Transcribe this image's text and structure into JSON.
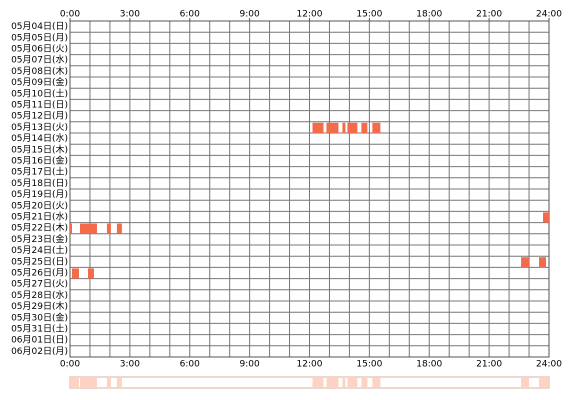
{
  "chart_data": {
    "type": "timeline",
    "categories": [
      "05月04日(日)",
      "05月05日(月)",
      "05月06日(火)",
      "05月07日(水)",
      "05月08日(木)",
      "05月09日(金)",
      "05月10日(土)",
      "05月11日(日)",
      "05月12日(月)",
      "05月13日(火)",
      "05月14日(水)",
      "05月15日(木)",
      "05月16日(金)",
      "05月17日(土)",
      "05月18日(日)",
      "05月19日(月)",
      "05月20日(火)",
      "05月21日(水)",
      "05月22日(木)",
      "05月23日(金)",
      "05月24日(土)",
      "05月25日(日)",
      "05月26日(月)",
      "05月27日(火)",
      "05月28日(水)",
      "05月29日(木)",
      "05月30日(金)",
      "05月31日(土)",
      "06月01日(日)",
      "06月02日(月)"
    ],
    "events": [
      [],
      [],
      [],
      [],
      [],
      [],
      [],
      [],
      [],
      [
        [
          12.15,
          12.7
        ],
        [
          12.85,
          13.45
        ],
        [
          13.65,
          13.8
        ],
        [
          13.9,
          14.4
        ],
        [
          14.6,
          14.9
        ],
        [
          15.15,
          15.55
        ]
      ],
      [],
      [],
      [],
      [],
      [],
      [],
      [],
      [
        [
          23.7,
          24
        ]
      ],
      [
        [
          0,
          0.1
        ],
        [
          0.5,
          1.35
        ],
        [
          1.85,
          2.05
        ],
        [
          2.35,
          2.6
        ]
      ],
      [],
      [],
      [
        [
          22.6,
          23.0
        ],
        [
          23.5,
          23.85
        ]
      ],
      [
        [
          0.1,
          0.45
        ],
        [
          0.9,
          1.2
        ]
      ],
      [],
      [],
      [],
      [],
      [],
      [],
      []
    ],
    "color": "#f36b4b",
    "summary_color": "#fdd3c3",
    "xlim": [
      0,
      24
    ],
    "xticks": [
      {
        "value": 0,
        "label": "0:00"
      },
      {
        "value": 3,
        "label": "3:00"
      },
      {
        "value": 6,
        "label": "6:00"
      },
      {
        "value": 9,
        "label": "9:00"
      },
      {
        "value": 12,
        "label": "12:00"
      },
      {
        "value": 15,
        "label": "15:00"
      },
      {
        "value": 18,
        "label": "18:00"
      },
      {
        "value": 21,
        "label": "21:00"
      },
      {
        "value": 24,
        "label": "24:00"
      }
    ],
    "grid_step": 1
  }
}
